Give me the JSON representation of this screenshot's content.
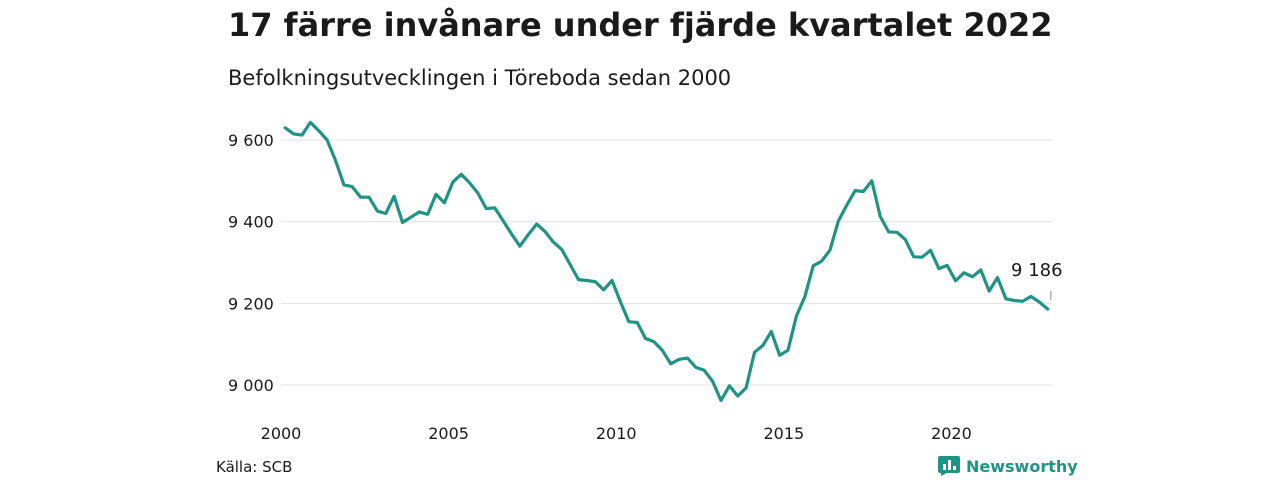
{
  "header": {
    "title": "17 färre invånare under fjärde kvartalet 2022",
    "subtitle": "Befolkningsutvecklingen i Töreboda sedan 2000"
  },
  "footer": {
    "source": "Källa: SCB",
    "brand": "Newsworthy",
    "brand_icon": "bar-chart-logo-icon"
  },
  "colors": {
    "line": "#1f9485",
    "grid": "#e3e3e3",
    "text": "#1a1a1a"
  },
  "chart_data": {
    "type": "line",
    "title": "17 färre invånare under fjärde kvartalet 2022",
    "subtitle": "Befolkningsutvecklingen i Töreboda sedan 2000",
    "xlabel": "",
    "ylabel": "",
    "x_ticks": [
      "2000",
      "2005",
      "2010",
      "2015",
      "2020"
    ],
    "y_ticks": [
      "9 000",
      "9 200",
      "9 400",
      "9 600"
    ],
    "y_tick_values": [
      9000,
      9200,
      9400,
      9600
    ],
    "xlim": [
      "2000-01",
      "2022-12"
    ],
    "ylim": [
      8950,
      9650
    ],
    "grid": true,
    "last_value_label": "9 186",
    "series": [
      {
        "x": [
          "2000-Q1",
          "2000-Q2",
          "2000-Q3",
          "2000-Q4",
          "2001-Q1",
          "2001-Q2",
          "2001-Q3",
          "2001-Q4",
          "2002-Q1",
          "2002-Q2",
          "2002-Q3",
          "2002-Q4",
          "2003-Q1",
          "2003-Q2",
          "2003-Q3",
          "2003-Q4",
          "2004-Q1",
          "2004-Q2",
          "2004-Q3",
          "2004-Q4",
          "2005-Q1",
          "2005-Q2",
          "2005-Q3",
          "2005-Q4",
          "2006-Q1",
          "2006-Q2",
          "2006-Q3",
          "2006-Q4",
          "2007-Q1",
          "2007-Q2",
          "2007-Q3",
          "2007-Q4",
          "2008-Q1",
          "2008-Q2",
          "2008-Q3",
          "2008-Q4",
          "2009-Q1",
          "2009-Q2",
          "2009-Q3",
          "2009-Q4",
          "2010-Q1",
          "2010-Q2",
          "2010-Q3",
          "2010-Q4",
          "2011-Q1",
          "2011-Q2",
          "2011-Q3",
          "2011-Q4",
          "2012-Q1",
          "2012-Q2",
          "2012-Q3",
          "2012-Q4",
          "2013-Q1",
          "2013-Q2",
          "2013-Q3",
          "2013-Q4",
          "2014-Q1",
          "2014-Q2",
          "2014-Q3",
          "2014-Q4",
          "2015-Q1",
          "2015-Q2",
          "2015-Q3",
          "2015-Q4",
          "2016-Q1",
          "2016-Q2",
          "2016-Q3",
          "2016-Q4",
          "2017-Q1",
          "2017-Q2",
          "2017-Q3",
          "2017-Q4",
          "2018-Q1",
          "2018-Q2",
          "2018-Q3",
          "2018-Q4",
          "2019-Q1",
          "2019-Q2",
          "2019-Q3",
          "2019-Q4",
          "2020-Q1",
          "2020-Q2",
          "2020-Q3",
          "2020-Q4",
          "2021-Q1",
          "2021-Q2",
          "2021-Q3",
          "2021-Q4",
          "2022-Q1",
          "2022-Q2",
          "2022-Q3",
          "2022-Q4"
        ],
        "values": [
          9630,
          9615,
          9612,
          9643,
          9623,
          9600,
          9550,
          9490,
          9486,
          9460,
          9460,
          9426,
          9420,
          9462,
          9398,
          9411,
          9424,
          9418,
          9467,
          9446,
          9497,
          9516,
          9495,
          9470,
          9432,
          9434,
          9402,
          9370,
          9340,
          9368,
          9394,
          9376,
          9350,
          9332,
          9295,
          9258,
          9256,
          9253,
          9233,
          9256,
          9204,
          9155,
          9153,
          9114,
          9106,
          9085,
          9052,
          9063,
          9066,
          9043,
          9036,
          9009,
          8962,
          8998,
          8973,
          8993,
          9080,
          9097,
          9131,
          9073,
          9085,
          9169,
          9216,
          9292,
          9303,
          9330,
          9401,
          9440,
          9476,
          9474,
          9500,
          9413,
          9375,
          9374,
          9356,
          9314,
          9313,
          9330,
          9285,
          9293,
          9255,
          9275,
          9265,
          9282,
          9230,
          9263,
          9211,
          9207,
          9205,
          9217,
          9203,
          9186
        ]
      }
    ]
  }
}
